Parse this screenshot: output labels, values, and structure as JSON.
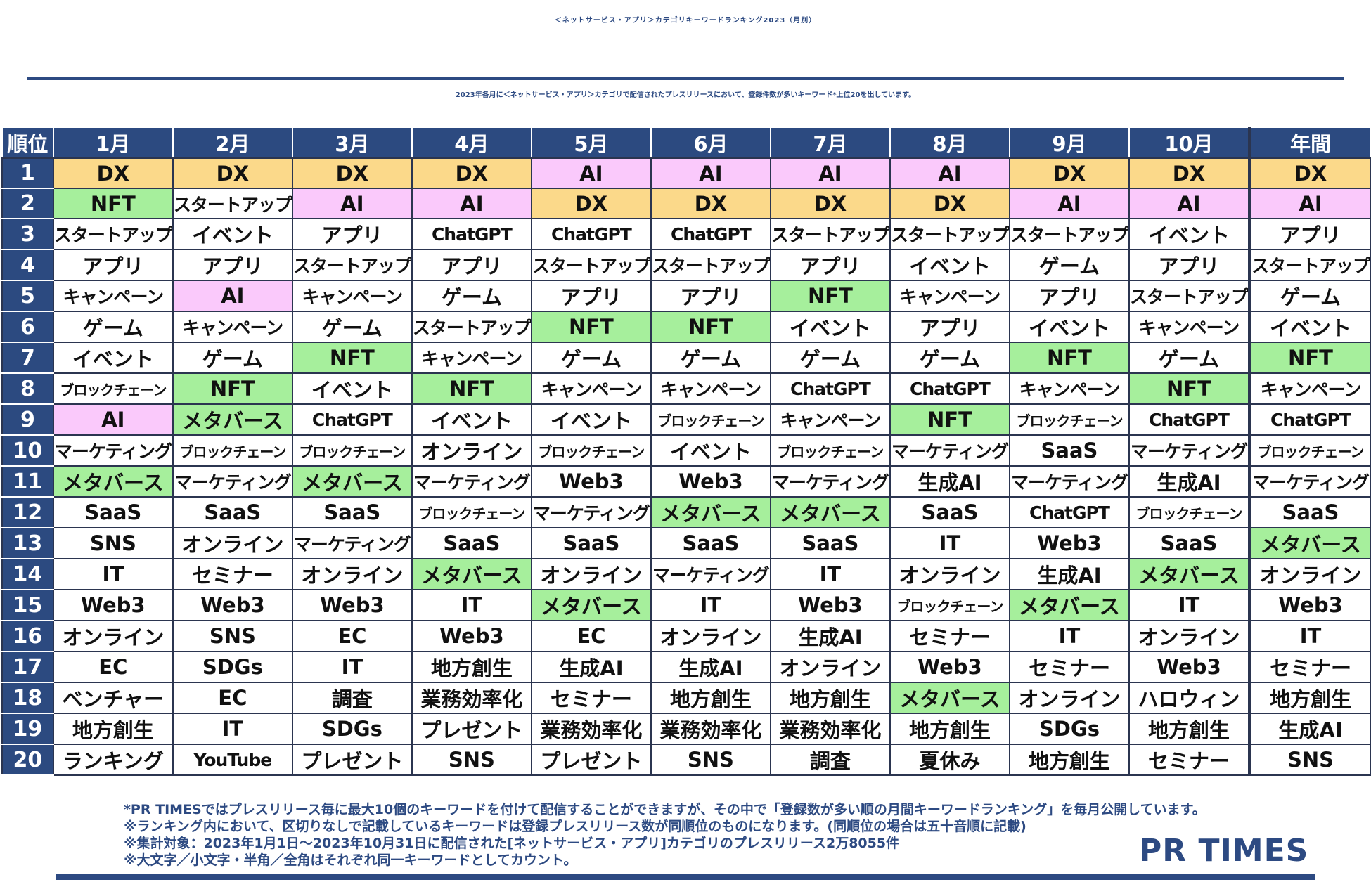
{
  "title": "＜ネットサービス・アプリ＞カテゴリキーワードランキング2023（月別）",
  "subtitle": "2023年各月に＜ネットサービス・アプリ＞カテゴリで配信されたプレスリリースにおいて、登録件数が多いキーワード*上位20を出しています。",
  "table": {
    "header": [
      "順位",
      "1月",
      "2月",
      "3月",
      "4月",
      "5月",
      "6月",
      "7月",
      "8月",
      "9月",
      "10月",
      "年間"
    ],
    "rows": [
      {
        "rank": "1",
        "cells": [
          "DX",
          "DX",
          "DX",
          "DX",
          "AI",
          "AI",
          "AI",
          "AI",
          "DX",
          "DX",
          "DX"
        ]
      },
      {
        "rank": "2",
        "cells": [
          "NFT",
          "スタートアップ",
          "AI",
          "AI",
          "DX",
          "DX",
          "DX",
          "DX",
          "AI",
          "AI",
          "AI"
        ]
      },
      {
        "rank": "3",
        "cells": [
          "スタートアップ",
          "イベント",
          "アプリ",
          "ChatGPT",
          "ChatGPT",
          "ChatGPT",
          "スタートアップ",
          "スタートアップ",
          "スタートアップ",
          "イベント",
          "アプリ"
        ]
      },
      {
        "rank": "4",
        "cells": [
          "アプリ",
          "アプリ",
          "スタートアップ",
          "アプリ",
          "スタートアップ",
          "スタートアップ",
          "アプリ",
          "イベント",
          "ゲーム",
          "アプリ",
          "スタートアップ"
        ]
      },
      {
        "rank": "5",
        "cells": [
          "キャンペーン",
          "AI",
          "キャンペーン",
          "ゲーム",
          "アプリ",
          "アプリ",
          "NFT",
          "キャンペーン",
          "アプリ",
          "スタートアップ",
          "ゲーム"
        ]
      },
      {
        "rank": "6",
        "cells": [
          "ゲーム",
          "キャンペーン",
          "ゲーム",
          "スタートアップ",
          "NFT",
          "NFT",
          "イベント",
          "アプリ",
          "イベント",
          "キャンペーン",
          "イベント"
        ]
      },
      {
        "rank": "7",
        "cells": [
          "イベント",
          "ゲーム",
          "NFT",
          "キャンペーン",
          "ゲーム",
          "ゲーム",
          "ゲーム",
          "ゲーム",
          "NFT",
          "ゲーム",
          "NFT"
        ]
      },
      {
        "rank": "8",
        "cells": [
          "ブロックチェーン",
          "NFT",
          "イベント",
          "NFT",
          "キャンペーン",
          "キャンペーン",
          "ChatGPT",
          "ChatGPT",
          "キャンペーン",
          "NFT",
          "キャンペーン"
        ]
      },
      {
        "rank": "9",
        "cells": [
          "AI",
          "メタバース",
          "ChatGPT",
          "イベント",
          "イベント",
          "ブロックチェーン",
          "キャンペーン",
          "NFT",
          "ブロックチェーン",
          "ChatGPT",
          "ChatGPT"
        ]
      },
      {
        "rank": "10",
        "cells": [
          "マーケティング",
          "ブロックチェーン",
          "ブロックチェーン",
          "オンライン",
          "ブロックチェーン",
          "イベント",
          "ブロックチェーン",
          "マーケティング",
          "SaaS",
          "マーケティング",
          "ブロックチェーン"
        ]
      },
      {
        "rank": "11",
        "cells": [
          "メタバース",
          "マーケティング",
          "メタバース",
          "マーケティング",
          "Web3",
          "Web3",
          "マーケティング",
          "生成AI",
          "マーケティング",
          "生成AI",
          "マーケティング"
        ]
      },
      {
        "rank": "12",
        "cells": [
          "SaaS",
          "SaaS",
          "SaaS",
          "ブロックチェーン",
          "マーケティング",
          "メタバース",
          "メタバース",
          "SaaS",
          "ChatGPT",
          "ブロックチェーン",
          "SaaS"
        ]
      },
      {
        "rank": "13",
        "cells": [
          "SNS",
          "オンライン",
          "マーケティング",
          "SaaS",
          "SaaS",
          "SaaS",
          "SaaS",
          "IT",
          "Web3",
          "SaaS",
          "メタバース"
        ]
      },
      {
        "rank": "14",
        "cells": [
          "IT",
          "セミナー",
          "オンライン",
          "メタバース",
          "オンライン",
          "マーケティング",
          "IT",
          "オンライン",
          "生成AI",
          "メタバース",
          "オンライン"
        ]
      },
      {
        "rank": "15",
        "cells": [
          "Web3",
          "Web3",
          "Web3",
          "IT",
          "メタバース",
          "IT",
          "Web3",
          "ブロックチェーン",
          "メタバース",
          "IT",
          "Web3"
        ]
      },
      {
        "rank": "16",
        "cells": [
          "オンライン",
          "SNS",
          "EC",
          "Web3",
          "EC",
          "オンライン",
          "生成AI",
          "セミナー",
          "IT",
          "オンライン",
          "IT"
        ]
      },
      {
        "rank": "17",
        "cells": [
          "EC",
          "SDGs",
          "IT",
          "地方創生",
          "生成AI",
          "生成AI",
          "オンライン",
          "Web3",
          "セミナー",
          "Web3",
          "セミナー"
        ]
      },
      {
        "rank": "18",
        "cells": [
          "ベンチャー",
          "EC",
          "調査",
          "業務効率化",
          "セミナー",
          "地方創生",
          "地方創生",
          "メタバース",
          "オンライン",
          "ハロウィン",
          "地方創生"
        ]
      },
      {
        "rank": "19",
        "cells": [
          "地方創生",
          "IT",
          "SDGs",
          "プレゼント",
          "業務効率化",
          "業務効率化",
          "業務効率化",
          "地方創生",
          "SDGs",
          "地方創生",
          "生成AI"
        ]
      },
      {
        "rank": "20",
        "cells": [
          "ランキング",
          "YouTube",
          "プレゼント",
          "SNS",
          "プレゼント",
          "SNS",
          "調査",
          "夏休み",
          "地方創生",
          "セミナー",
          "SNS"
        ]
      }
    ]
  },
  "highlight_colors": {
    "DX": "#fbd98a",
    "AI": "#fac9fb",
    "NFT": "#a6ef9c",
    "メタバース": "#a6ef9c"
  },
  "notes": [
    "*PR TIMESではプレスリリース毎に最大10個のキーワードを付けて配信することができますが、その中で「登録数が多い順の月間キーワードランキング」を毎月公開しています。",
    "※ランキング内において、区切りなしで記載しているキーワードは登録プレスリリース数が同順位のものになります。(同順位の場合は五十音順に記載)",
    "※集計対象：2023年1月1日～2023年10月31日に配信された[ネットサービス・アプリ]カテゴリのプレスリリース2万8055件",
    "※大文字／小文字・半角／全角はそれぞれ同一キーワードとしてカウント。"
  ],
  "logo": "PR TIMES"
}
